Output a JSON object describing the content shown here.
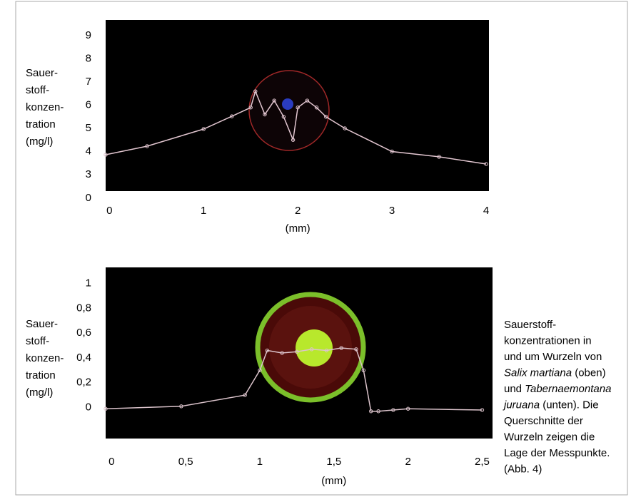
{
  "chart_data": [
    {
      "type": "line",
      "y_label_lines": [
        "Sauer-",
        "stoff-",
        "konzen-",
        "tration",
        "(mg/l)"
      ],
      "x_label": "(mm)",
      "x": [
        -0.04,
        0.4,
        1.0,
        1.3,
        1.5,
        1.55,
        1.65,
        1.75,
        1.85,
        1.95,
        2.0,
        2.1,
        2.2,
        2.3,
        2.5,
        3.0,
        3.5,
        4.0
      ],
      "values": [
        3.86,
        4.23,
        4.97,
        5.52,
        5.9,
        6.6,
        5.6,
        6.2,
        5.5,
        4.5,
        5.9,
        6.2,
        5.9,
        5.5,
        5.0,
        4.0,
        3.77,
        3.46
      ],
      "color": "#e2c6d0",
      "xlim": [
        -0.04,
        4.03
      ],
      "ylim": [
        2.29,
        9.68
      ],
      "y_break": true,
      "xticks": [
        0,
        1,
        2,
        3,
        4
      ],
      "yticks": [
        0,
        3,
        4,
        5,
        6,
        7,
        8,
        9
      ]
    },
    {
      "type": "line",
      "y_label_lines": [
        "Sauer-",
        "stoff-",
        "konzen-",
        "tration",
        "(mg/l)"
      ],
      "x_label": "(mm)",
      "x": [
        -0.04,
        0.47,
        0.9,
        1.0,
        1.05,
        1.15,
        1.25,
        1.35,
        1.45,
        1.55,
        1.65,
        1.7,
        1.75,
        1.8,
        1.9,
        2.0,
        2.5
      ],
      "values": [
        -0.01,
        0.01,
        0.1,
        0.3,
        0.46,
        0.44,
        0.45,
        0.47,
        0.46,
        0.48,
        0.47,
        0.3,
        -0.03,
        -0.03,
        -0.02,
        -0.01,
        -0.02
      ],
      "color": "#dcc4cc",
      "xlim": [
        -0.04,
        2.57
      ],
      "ylim": [
        -0.25,
        1.13
      ],
      "xticks": [
        0,
        {
          "value": 0.5,
          "label": "0,5"
        },
        1,
        {
          "value": 1.5,
          "label": "1,5"
        },
        2,
        {
          "value": 2.5,
          "label": "2,5"
        }
      ],
      "yticks": [
        0,
        {
          "value": 0.2,
          "label": "0,2"
        },
        {
          "value": 0.4,
          "label": "0,4"
        },
        {
          "value": 0.6,
          "label": "0,6"
        },
        {
          "value": 0.8,
          "label": "0,8"
        },
        1
      ]
    }
  ],
  "caption_lines": [
    [
      "Sauerstoff-"
    ],
    [
      "konzentrationen in"
    ],
    [
      "und um Wurzeln von"
    ],
    [
      {
        "text": "Salix martiana",
        "style": "italic"
      },
      " (oben)"
    ],
    [
      "und ",
      {
        "text": "Tabernaemontana",
        "style": "italic"
      }
    ],
    [
      {
        "text": "juruana",
        "style": "italic"
      },
      " (unten). Die"
    ],
    [
      "Querschnitte der"
    ],
    [
      "Wurzeln zeigen die"
    ],
    [
      "Lage der Messpunkte."
    ],
    [
      "(Abb. 4)"
    ]
  ]
}
